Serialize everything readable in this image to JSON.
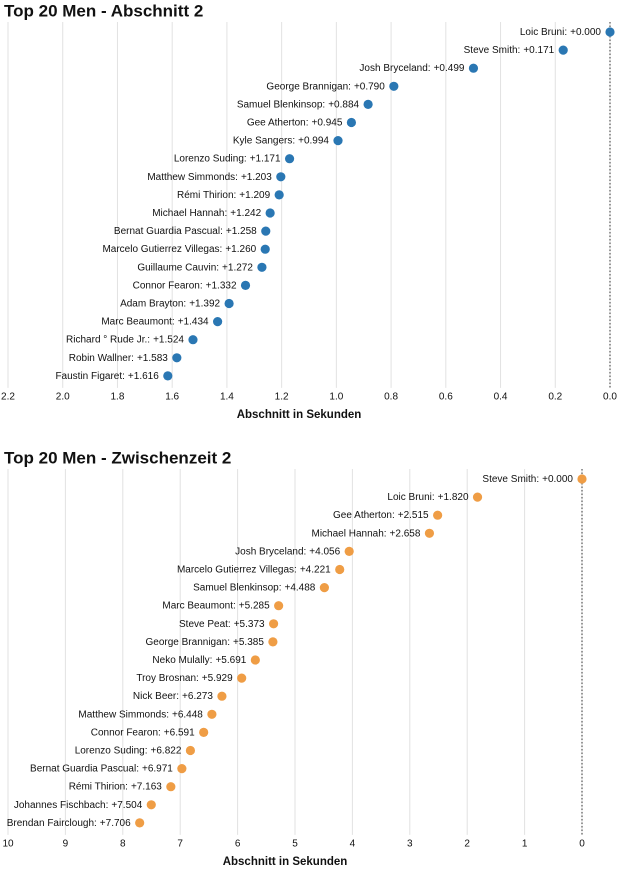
{
  "chart_data": [
    {
      "type": "dot",
      "title": "Top 20 Men - Abschnitt 2",
      "x_label": "Abschnitt in Sekunden",
      "color": "#2a77b3",
      "grid": true,
      "categories": [
        "Loic Bruni:",
        "Steve Smith:",
        "Josh Bryceland:",
        "George Brannigan:",
        "Samuel Blenkinsop:",
        "Gee Atherton:",
        "Kyle Sangers:",
        "Lorenzo Suding:",
        "Matthew Simmonds:",
        "Rémi Thirion:",
        "Michael Hannah:",
        "Bernat Guardia Pascual:",
        "Marcelo Gutierrez Villegas:",
        "Guillaume Cauvin:",
        "Connor Fearon:",
        "Adam Brayton:",
        "Marc Beaumont:",
        "Richard ° Rude Jr.:",
        "Robin Wallner:",
        "Faustin Figaret:"
      ],
      "values": [
        0.0,
        0.171,
        0.499,
        0.79,
        0.884,
        0.945,
        0.994,
        1.171,
        1.203,
        1.209,
        1.242,
        1.258,
        1.26,
        1.272,
        1.332,
        1.392,
        1.434,
        1.524,
        1.583,
        1.616
      ],
      "value_labels": [
        "+0.000",
        "+0.171",
        "+0.499",
        "+0.790",
        "+0.884",
        "+0.945",
        "+0.994",
        "+1.171",
        "+1.203",
        "+1.209",
        "+1.242",
        "+1.258",
        "+1.260",
        "+1.272",
        "+1.332",
        "+1.392",
        "+1.434",
        "+1.524",
        "+1.583",
        "+1.616"
      ],
      "xlim": [
        2.2,
        0
      ],
      "xticks": [
        {
          "value": 2.2,
          "label": "2.2"
        },
        {
          "value": 2.0,
          "label": "2.0"
        },
        {
          "value": 1.8,
          "label": "1.8"
        },
        {
          "value": 1.6,
          "label": "1.6"
        },
        {
          "value": 1.4,
          "label": "1.4"
        },
        {
          "value": 1.2,
          "label": "1.2"
        },
        {
          "value": 1.0,
          "label": "1.0"
        },
        {
          "value": 0.8,
          "label": "0.8"
        },
        {
          "value": 0.6,
          "label": "0.6"
        },
        {
          "value": 0.4,
          "label": "0.4"
        },
        {
          "value": 0.2,
          "label": "0.2"
        },
        {
          "value": 0.0,
          "label": "0.0"
        }
      ]
    },
    {
      "type": "dot",
      "title": "Top 20 Men - Zwischenzeit 2",
      "x_label": "Abschnitt in Sekunden",
      "color": "#ef9d45",
      "grid": true,
      "categories": [
        "Steve Smith:",
        "Loic Bruni:",
        "Gee Atherton:",
        "Michael Hannah:",
        "Josh Bryceland:",
        "Marcelo Gutierrez Villegas:",
        "Samuel Blenkinsop:",
        "Marc Beaumont:",
        "Steve Peat:",
        "George Brannigan:",
        "Neko Mulally:",
        "Troy Brosnan:",
        "Nick Beer:",
        "Matthew Simmonds:",
        "Connor Fearon:",
        "Lorenzo Suding:",
        "Bernat Guardia Pascual:",
        "Rémi Thirion:",
        "Johannes Fischbach:",
        "Brendan Fairclough:"
      ],
      "values": [
        0.0,
        1.82,
        2.515,
        2.658,
        4.056,
        4.221,
        4.488,
        5.285,
        5.373,
        5.385,
        5.691,
        5.929,
        6.273,
        6.448,
        6.591,
        6.822,
        6.971,
        7.163,
        7.504,
        7.706
      ],
      "value_labels": [
        "+0.000",
        "+1.820",
        "+2.515",
        "+2.658",
        "+4.056",
        "+4.221",
        "+4.488",
        "+5.285",
        "+5.373",
        "+5.385",
        "+5.691",
        "+5.929",
        "+6.273",
        "+6.448",
        "+6.591",
        "+6.822",
        "+6.971",
        "+7.163",
        "+7.504",
        "+7.706"
      ],
      "xlim": [
        10,
        0
      ],
      "xticks": [
        10,
        9,
        8,
        7,
        6,
        5,
        4,
        3,
        2,
        1,
        0
      ]
    }
  ]
}
